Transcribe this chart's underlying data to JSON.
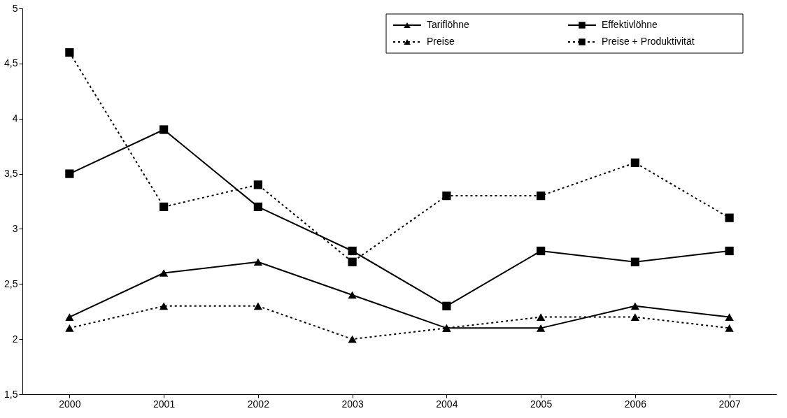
{
  "chart_data": {
    "type": "line",
    "categories": [
      "2000",
      "2001",
      "2002",
      "2003",
      "2004",
      "2005",
      "2006",
      "2007"
    ],
    "series": [
      {
        "name": "Tariflöhne",
        "color": "#000000",
        "marker": "triangle",
        "line_style": "solid",
        "values": [
          2.2,
          2.6,
          2.7,
          2.4,
          2.1,
          2.1,
          2.3,
          2.2
        ]
      },
      {
        "name": "Effektivlöhne",
        "color": "#000000",
        "marker": "square",
        "line_style": "solid",
        "values": [
          3.5,
          3.9,
          3.2,
          2.8,
          2.3,
          2.8,
          2.7,
          2.8
        ]
      },
      {
        "name": "Preise",
        "color": "#000000",
        "marker": "triangle",
        "line_style": "dotted",
        "values": [
          2.1,
          2.3,
          2.3,
          2.0,
          2.1,
          2.2,
          2.2,
          2.1
        ]
      },
      {
        "name": "Preise + Produktivität",
        "color": "#000000",
        "marker": "square",
        "line_style": "dotted",
        "values": [
          4.6,
          3.2,
          3.4,
          2.7,
          3.3,
          3.3,
          3.6,
          3.1
        ]
      }
    ],
    "ylim": [
      1.5,
      5
    ],
    "yticks": [
      {
        "value": 1.5,
        "label": "1,5"
      },
      2,
      {
        "value": 2.5,
        "label": "2,5"
      },
      3,
      {
        "value": 3.5,
        "label": "3,5"
      },
      4,
      {
        "value": 4.5,
        "label": "4,5"
      },
      5
    ],
    "grid": false,
    "legend": "top right"
  }
}
